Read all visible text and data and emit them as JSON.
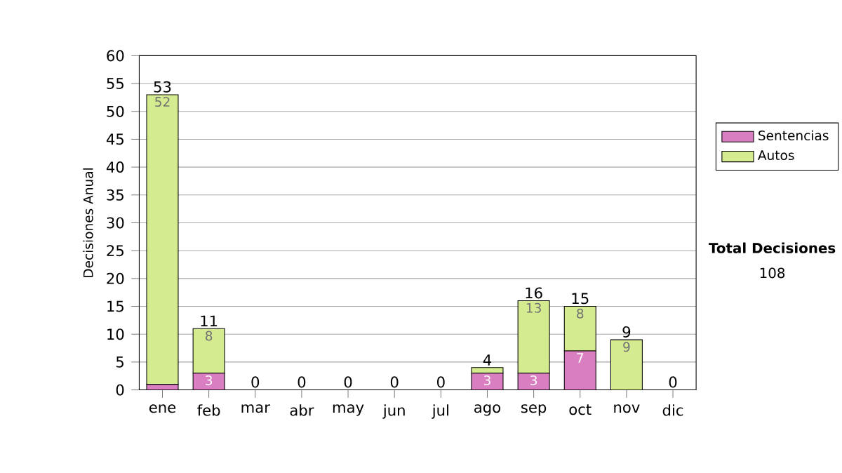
{
  "chart_data": {
    "type": "bar",
    "stacked": true,
    "ylabel": "Decisiones Anual",
    "categories": [
      "ene",
      "feb",
      "mar",
      "abr",
      "may",
      "jun",
      "jul",
      "ago",
      "sep",
      "oct",
      "nov",
      "dic"
    ],
    "series": [
      {
        "name": "Sentencias",
        "color": "#d97ec0",
        "values": [
          1,
          3,
          0,
          0,
          0,
          0,
          0,
          3,
          3,
          7,
          0,
          0
        ],
        "value_labels": [
          null,
          "3",
          null,
          null,
          null,
          null,
          null,
          "3",
          "3",
          "7",
          null,
          null
        ]
      },
      {
        "name": "Autos",
        "color": "#d4eb8f",
        "values": [
          52,
          8,
          0,
          0,
          0,
          0,
          0,
          1,
          13,
          8,
          9,
          0
        ],
        "value_labels": [
          "52",
          "8",
          null,
          null,
          null,
          null,
          null,
          null,
          "13",
          "8",
          "9",
          null
        ]
      }
    ],
    "totals": [
      "53",
      "11",
      "0",
      "0",
      "0",
      "0",
      "0",
      "4",
      "16",
      "15",
      "9",
      "0"
    ],
    "ylim": [
      0,
      60
    ],
    "yticks": [
      0,
      5,
      10,
      15,
      20,
      25,
      30,
      35,
      40,
      45,
      50,
      55,
      60
    ],
    "grid": "y",
    "legend": "right",
    "annotations": [
      "Total Decisiones",
      "108"
    ]
  }
}
